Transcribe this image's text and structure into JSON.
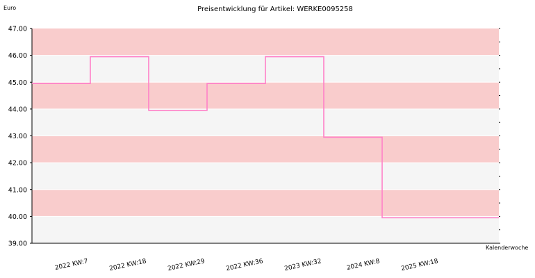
{
  "chart_data": {
    "type": "line",
    "step": true,
    "title": "Preisentwicklung für Artikel: WERKE0095258",
    "ylabel": "Euro",
    "xlabel": "Kalenderwoche",
    "ylim": [
      39.0,
      47.0
    ],
    "yticks": [
      "39.00",
      "40.00",
      "41.00",
      "42.00",
      "43.00",
      "44.00",
      "45.00",
      "46.00",
      "47.00"
    ],
    "categories": [
      "2022 KW:7",
      "2022 KW:18",
      "2022 KW:29",
      "2022 KW:36",
      "2023 KW:32",
      "2024 KW:8",
      "2025 KW:18"
    ],
    "series": [
      {
        "values": [
          44.95,
          45.95,
          43.95,
          44.95,
          45.95,
          42.95,
          39.95
        ]
      }
    ],
    "colors": {
      "line": "#ff80c8",
      "band_dark": "#f9cccc",
      "band_light": "#f5f5f5",
      "grid": "#ffffff"
    },
    "grid": true,
    "legend": "none"
  }
}
